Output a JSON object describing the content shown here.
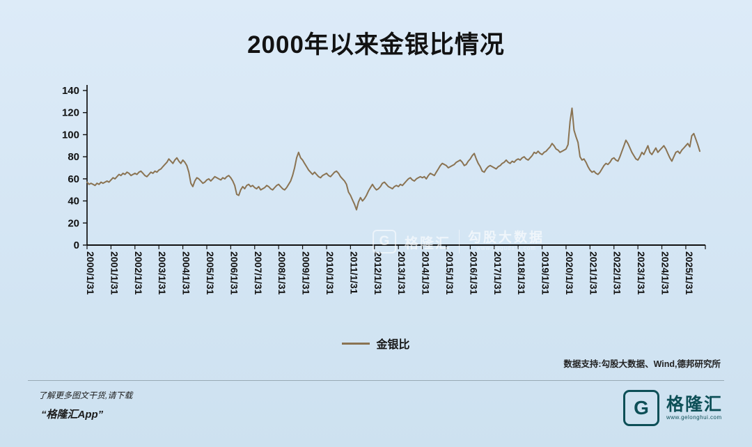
{
  "title": "2000年以来金银比情况",
  "source_note": "数据支持:勾股大数据、Wind,德邦研究所",
  "watermark": {
    "logo_letter": "G",
    "brand": "格隆汇",
    "big": "勾股大数据",
    "url": "www.gugudata.com"
  },
  "footer": {
    "hint": "了解更多图文干货,请下载",
    "app": "“格隆汇App”",
    "logo_letter": "G",
    "logo_text": "格隆汇",
    "logo_url": "www.gelonghui.com"
  },
  "colors": {
    "background_top": "#ddebf8",
    "background_bottom": "#cde1f0",
    "line": "#8a7352",
    "logo_teal": "#0d4f57",
    "axis": "#111111"
  },
  "chart_data": {
    "type": "line",
    "title": "2000年以来金银比情况",
    "xlabel": "",
    "ylabel": "",
    "y_max": 140,
    "y_min": 0,
    "y_ticks": [
      0,
      20,
      40,
      60,
      80,
      100,
      120,
      140
    ],
    "grid": false,
    "legend_position": "bottom",
    "x_start": "2000-01",
    "frequency": "monthly",
    "x_tick_labels": [
      "2000/1/31",
      "2001/1/31",
      "2002/1/31",
      "2003/1/31",
      "2004/1/31",
      "2005/1/31",
      "2006/1/31",
      "2007/1/31",
      "2008/1/31",
      "2009/1/31",
      "2010/1/31",
      "2011/1/31",
      "2012/1/31",
      "2013/1/31",
      "2014/1/31",
      "2015/1/31",
      "2016/1/31",
      "2017/1/31",
      "2018/1/31",
      "2019/1/31",
      "2020/1/31",
      "2021/1/31",
      "2022/1/31",
      "2023/1/31",
      "2024/1/31",
      "2025/1/31"
    ],
    "series": [
      {
        "name": "金银比",
        "color": "#8a7352",
        "values": [
          57,
          55,
          56,
          55,
          54,
          56,
          55,
          57,
          56,
          57,
          58,
          57,
          59,
          61,
          60,
          62,
          64,
          63,
          65,
          64,
          66,
          65,
          63,
          64,
          65,
          64,
          66,
          67,
          65,
          63,
          62,
          64,
          66,
          65,
          67,
          66,
          68,
          69,
          71,
          73,
          75,
          78,
          76,
          74,
          77,
          79,
          76,
          74,
          77,
          75,
          72,
          66,
          56,
          53,
          58,
          61,
          60,
          58,
          56,
          57,
          59,
          60,
          58,
          60,
          62,
          61,
          60,
          59,
          61,
          60,
          62,
          63,
          61,
          58,
          54,
          46,
          45,
          50,
          53,
          51,
          54,
          55,
          53,
          54,
          52,
          51,
          53,
          50,
          51,
          52,
          54,
          53,
          51,
          50,
          52,
          54,
          55,
          53,
          51,
          50,
          52,
          55,
          58,
          63,
          70,
          79,
          84,
          79,
          77,
          74,
          71,
          68,
          66,
          64,
          66,
          64,
          62,
          61,
          63,
          64,
          65,
          63,
          62,
          64,
          66,
          67,
          65,
          62,
          60,
          58,
          55,
          48,
          45,
          41,
          37,
          32,
          39,
          43,
          40,
          42,
          45,
          49,
          52,
          55,
          52,
          50,
          51,
          53,
          56,
          57,
          55,
          53,
          52,
          51,
          53,
          54,
          53,
          55,
          54,
          56,
          58,
          60,
          61,
          59,
          58,
          60,
          61,
          62,
          61,
          62,
          60,
          63,
          65,
          64,
          63,
          66,
          69,
          72,
          74,
          73,
          72,
          70,
          71,
          72,
          73,
          75,
          76,
          77,
          75,
          72,
          73,
          76,
          78,
          81,
          83,
          78,
          74,
          71,
          67,
          66,
          69,
          71,
          72,
          71,
          70,
          69,
          71,
          72,
          74,
          75,
          77,
          75,
          74,
          76,
          75,
          77,
          78,
          77,
          79,
          80,
          78,
          77,
          79,
          81,
          84,
          83,
          85,
          83,
          82,
          84,
          85,
          87,
          89,
          92,
          90,
          87,
          86,
          84,
          85,
          86,
          87,
          91,
          112,
          124,
          104,
          98,
          93,
          80,
          77,
          78,
          75,
          71,
          68,
          66,
          67,
          65,
          64,
          66,
          69,
          72,
          74,
          73,
          75,
          78,
          79,
          77,
          76,
          80,
          85,
          90,
          95,
          92,
          88,
          84,
          81,
          78,
          77,
          80,
          84,
          82,
          86,
          90,
          84,
          82,
          85,
          88,
          84,
          86,
          88,
          90,
          87,
          83,
          79,
          76,
          80,
          84,
          85,
          83,
          86,
          88,
          90,
          92,
          89,
          99,
          101,
          96,
          91,
          85
        ]
      }
    ]
  }
}
